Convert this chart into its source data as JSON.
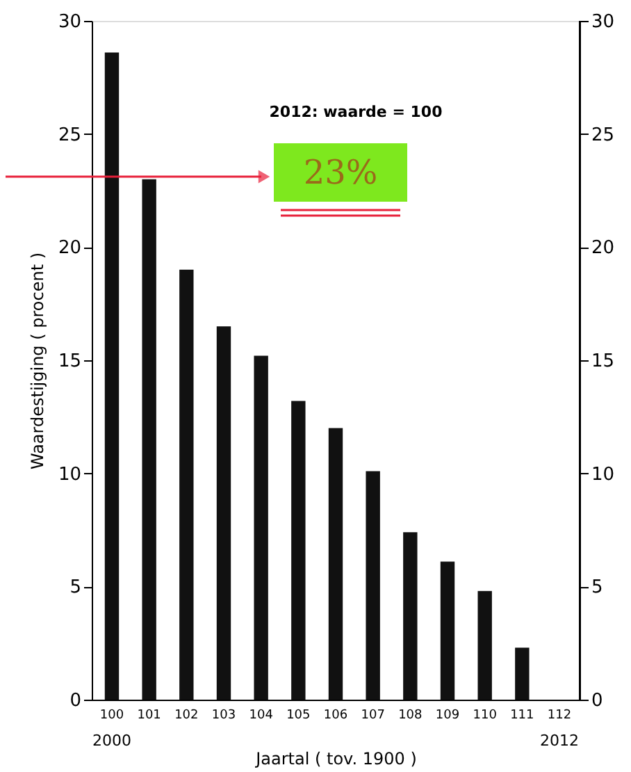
{
  "chart_data": {
    "type": "bar",
    "xlabel": "Jaartal ( tov. 1900 )",
    "ylabel": "Waardestijging ( procent )",
    "categories": [
      "100",
      "101",
      "102",
      "103",
      "104",
      "105",
      "106",
      "107",
      "108",
      "109",
      "110",
      "111",
      "112"
    ],
    "values": [
      28.6,
      23.0,
      19.0,
      16.5,
      15.2,
      13.2,
      12.0,
      10.1,
      7.4,
      6.1,
      4.8,
      2.3,
      0
    ],
    "color": "#111111",
    "ylim": [
      0,
      30
    ],
    "yticks": [
      0,
      5,
      10,
      15,
      20,
      25,
      30
    ],
    "y2lim": [
      0,
      30
    ],
    "y2ticks": [
      0,
      5,
      10,
      15,
      20,
      25,
      30
    ],
    "grid": false,
    "annotations": [
      "2012: waarde = 100",
      "23%",
      "2000",
      "2012"
    ]
  }
}
